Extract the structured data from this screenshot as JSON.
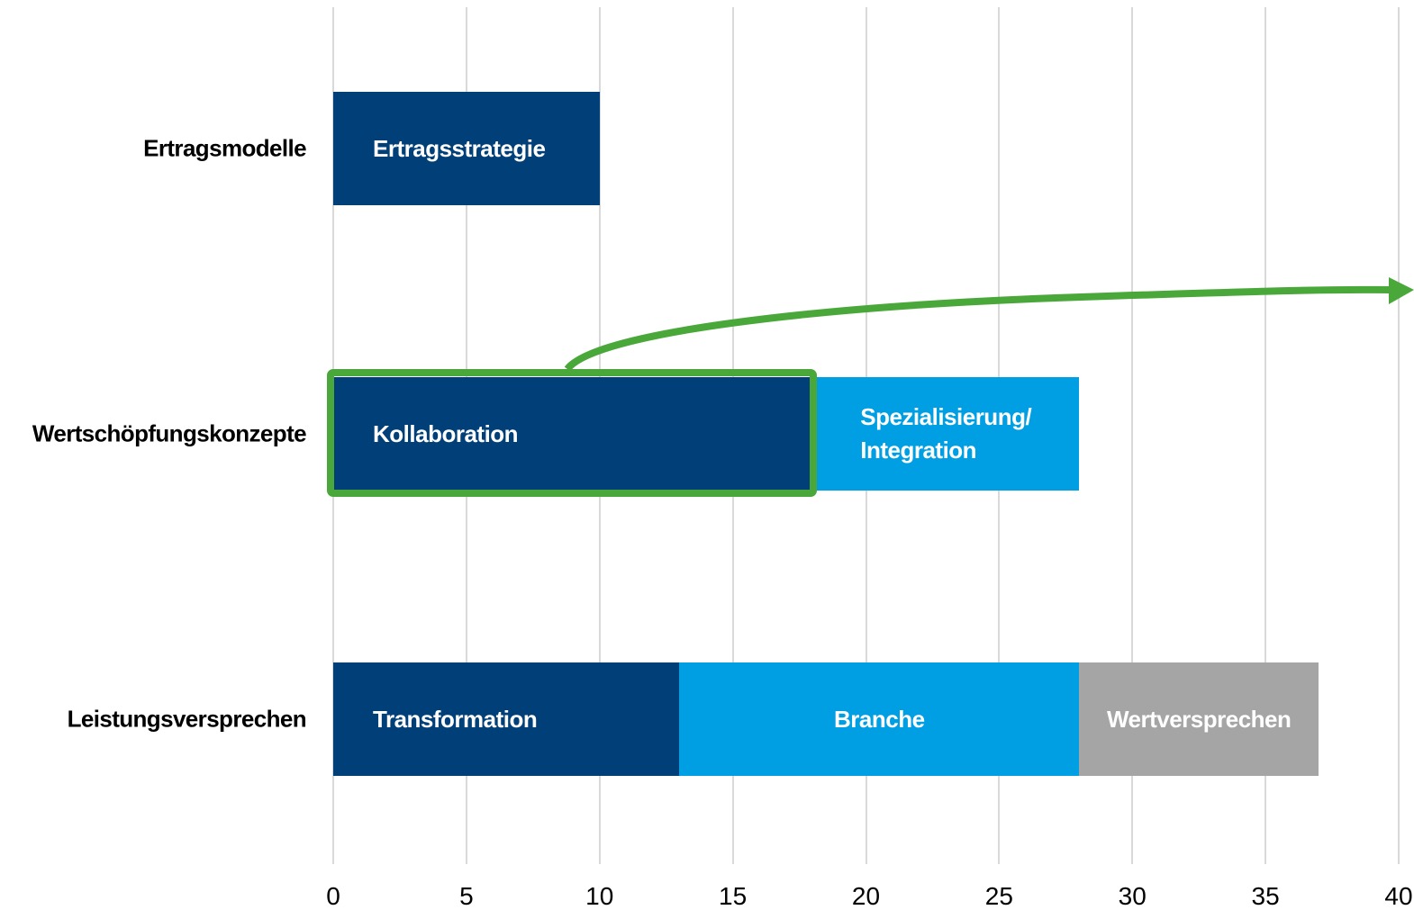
{
  "chart_data": {
    "type": "bar",
    "orientation": "horizontal",
    "stacked": true,
    "rows": [
      {
        "category": "Ertragsmodelle",
        "segments": [
          {
            "name": "Ertragsstrategie",
            "value": 10,
            "color": "#003f78"
          }
        ]
      },
      {
        "category": "Wertschöpfungskonzepte",
        "segments": [
          {
            "name": "Kollaboration",
            "value": 18,
            "color": "#003f78"
          },
          {
            "name": "Spezialisierung/\nIntegration",
            "value": 10,
            "color": "#009fe3"
          }
        ]
      },
      {
        "category": "Leistungsversprechen",
        "segments": [
          {
            "name": "Transformation",
            "value": 13,
            "color": "#003f78"
          },
          {
            "name": "Branche",
            "value": 15,
            "color": "#009fe3"
          },
          {
            "name": "Wertversprechen",
            "value": 9,
            "color": "#a5a5a5"
          }
        ]
      }
    ],
    "xlim": [
      0,
      40
    ],
    "xticks": [
      0,
      5,
      10,
      15,
      20,
      25,
      30,
      35,
      40
    ],
    "grid": true
  }
}
